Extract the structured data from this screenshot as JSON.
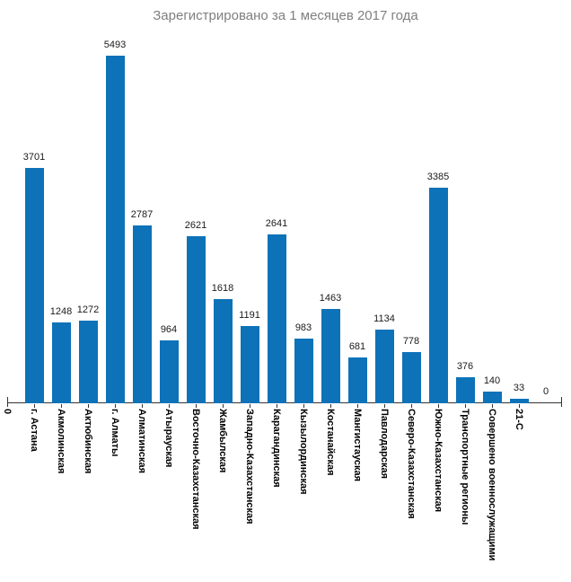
{
  "title": "Зарегистрировано за 1 месяцев 2017 года",
  "colors": {
    "bar": "#0d72b8",
    "title_text": "#7f7f7f",
    "axis": "#333333",
    "value_label": "#1a1a1a",
    "category_label": "#000000",
    "background": "#ffffff"
  },
  "chart_data": {
    "type": "bar",
    "title": "Зарегистрировано за 1 месяцев 2017 года",
    "categories": [
      "г. Астана",
      "Акмолинская",
      "Актюбинская",
      "г. Алматы",
      "Алматинская",
      "Атырауская",
      "Восточно-Казахстанская",
      "Жамбылская",
      "Западно-Казахстанская",
      "Карагандинская",
      "Кызылординская",
      "Костанайская",
      "Мангистауская",
      "Павлодарская",
      "Северо-Казахстанская",
      "Южно-Казахстанская",
      "Транспортные регионы",
      "Совершено военнослужащими",
      "21-С"
    ],
    "values": [
      3701,
      1248,
      1272,
      5493,
      2787,
      964,
      2621,
      1618,
      1191,
      2641,
      983,
      1463,
      681,
      1134,
      778,
      3385,
      376,
      140,
      33
    ],
    "origin_tick_label": "0",
    "trailing_value_label": "0",
    "ylim": [
      0,
      5493
    ],
    "xlabel": "",
    "ylabel": "",
    "grid": false,
    "legend": false,
    "value_labels_shown": true,
    "category_label_rotation_deg": 90
  }
}
